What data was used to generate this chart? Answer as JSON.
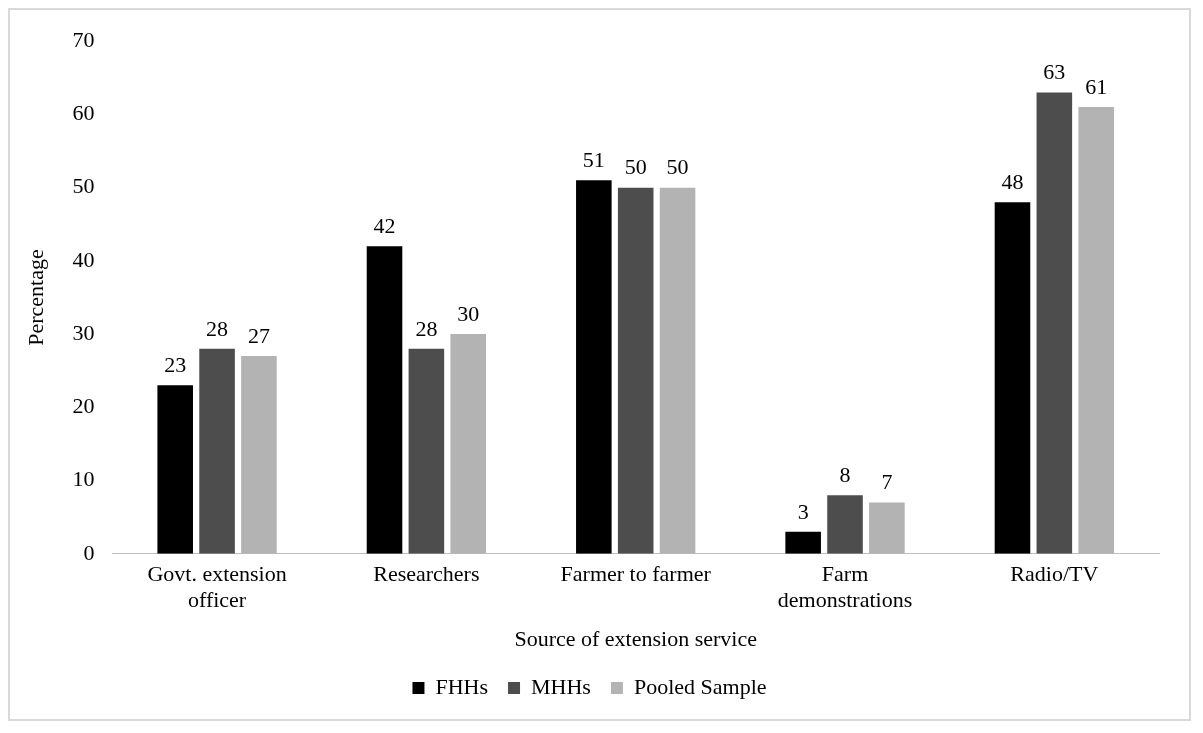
{
  "chart_data": {
    "type": "bar",
    "xlabel": "Source of extension service",
    "ylabel": "Percentage",
    "categories": [
      "Govt. extension officer",
      "Researchers",
      "Farmer to farmer",
      "Farm demonstrations",
      "Radio/TV"
    ],
    "series": [
      {
        "name": "FHHs",
        "color": "#000000",
        "values": [
          23,
          42,
          51,
          3,
          48
        ]
      },
      {
        "name": "MHHs",
        "color": "#4d4d4d",
        "values": [
          28,
          28,
          50,
          8,
          63
        ]
      },
      {
        "name": "Pooled Sample",
        "color": "#b3b3b3",
        "values": [
          27,
          30,
          50,
          7,
          61
        ]
      }
    ],
    "ylim": [
      0,
      70
    ],
    "yticks": [
      0,
      10,
      20,
      30,
      40,
      50,
      60,
      70
    ],
    "grid": false,
    "legend": "bottom",
    "data_labels": true
  }
}
